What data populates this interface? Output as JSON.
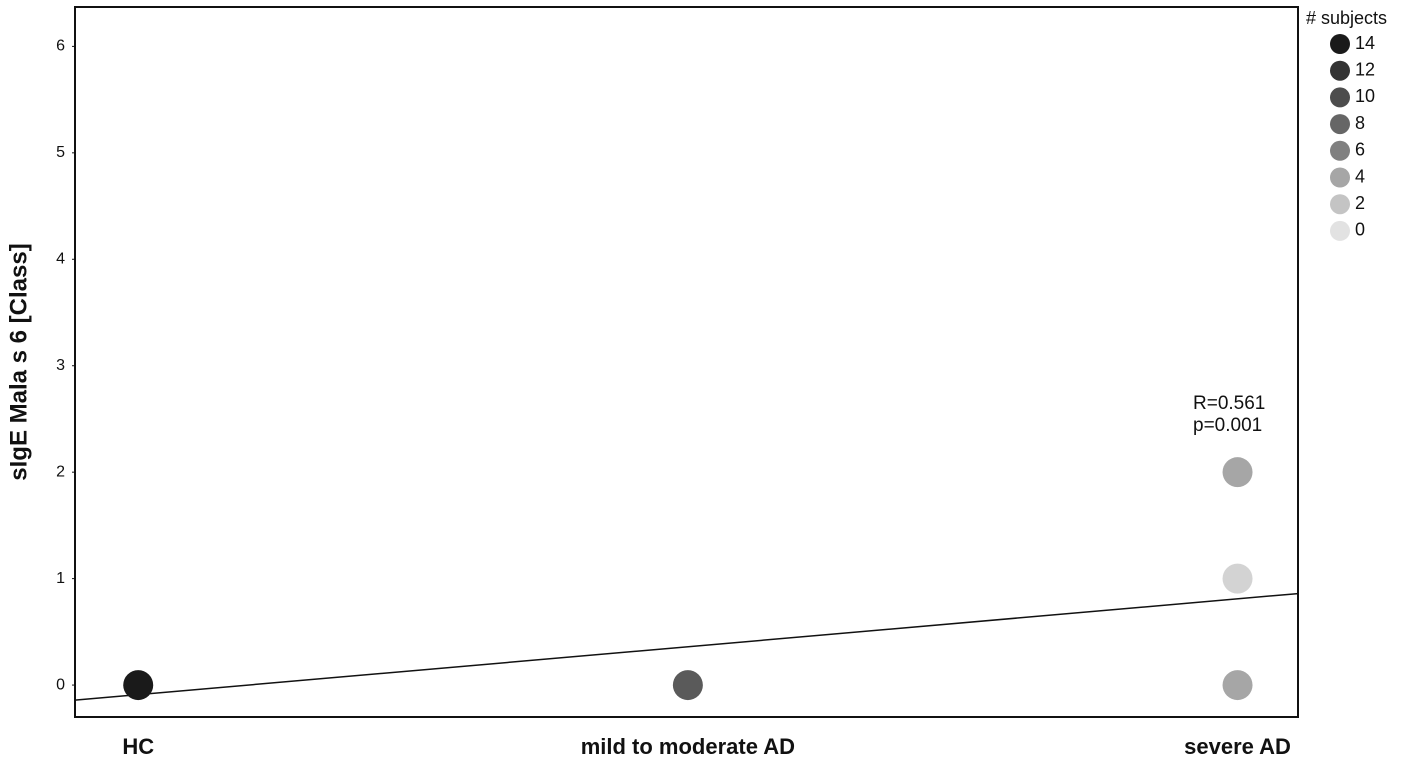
{
  "chart_data": {
    "type": "scatter",
    "y_label": "sIgE Mala s 6 [Class]",
    "categories": [
      "HC",
      "mild to moderate AD",
      "severe AD"
    ],
    "x": [
      "HC",
      "mild to moderate AD",
      "severe AD",
      "severe AD",
      "severe AD"
    ],
    "values": [
      0,
      0,
      2,
      1,
      0
    ],
    "sizes": [
      14,
      9,
      4,
      1,
      4
    ],
    "xlim": [
      -0.115,
      2.11
    ],
    "ylim": [
      -0.3,
      6.37
    ],
    "yticks": [
      0,
      1,
      2,
      3,
      4,
      5,
      6
    ],
    "trend": {
      "intercept": -0.09,
      "slope": 0.45
    },
    "annotations": [
      "R=0.561",
      "p=0.001"
    ],
    "legend": {
      "title": "# subjects",
      "values": [
        14,
        12,
        10,
        8,
        6,
        4,
        2,
        0
      ],
      "colors": [
        "#1a1a1a",
        "#333333",
        "#4d4d4d",
        "#666666",
        "#808080",
        "#a6a6a6",
        "#c4c4c4",
        "#e2e2e2"
      ]
    }
  }
}
